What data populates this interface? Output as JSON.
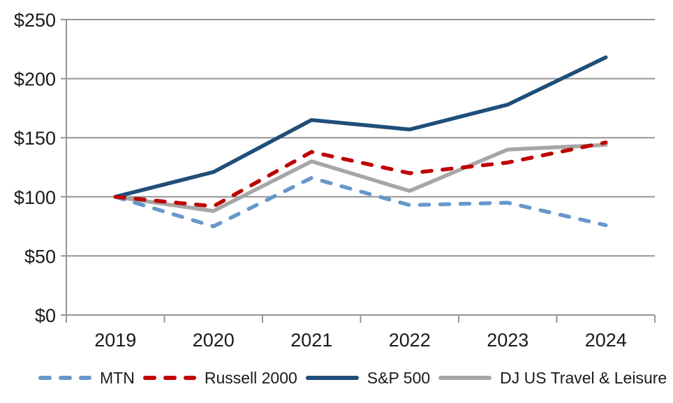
{
  "chart_data": {
    "type": "line",
    "title": "",
    "xlabel": "",
    "ylabel": "",
    "categories": [
      "2019",
      "2020",
      "2021",
      "2022",
      "2023",
      "2024"
    ],
    "series": [
      {
        "name": "MTN",
        "color": "#6897CA",
        "style": "dashed",
        "values": [
          100,
          75,
          116,
          93,
          95,
          76
        ]
      },
      {
        "name": "Russell 2000",
        "color": "#C00000",
        "style": "dashed",
        "values": [
          100,
          92,
          138,
          120,
          129,
          146
        ]
      },
      {
        "name": "S&P 500",
        "color": "#1F4E79",
        "style": "solid",
        "values": [
          100,
          121,
          165,
          157,
          178,
          218
        ]
      },
      {
        "name": "DJ US Travel & Leisure",
        "color": "#A6A6A6",
        "style": "solid",
        "values": [
          100,
          88,
          130,
          105,
          140,
          144
        ]
      }
    ],
    "y_axis": {
      "min": 0,
      "max": 250,
      "step": 50,
      "tick_labels": [
        "$0",
        "$50",
        "$100",
        "$150",
        "$200",
        "$250"
      ],
      "format": "currency-dollars"
    },
    "grid": true,
    "legend_position": "bottom",
    "axis_color": "#949494",
    "text_color": "#1a1a1a",
    "background_color": "#ffffff"
  }
}
